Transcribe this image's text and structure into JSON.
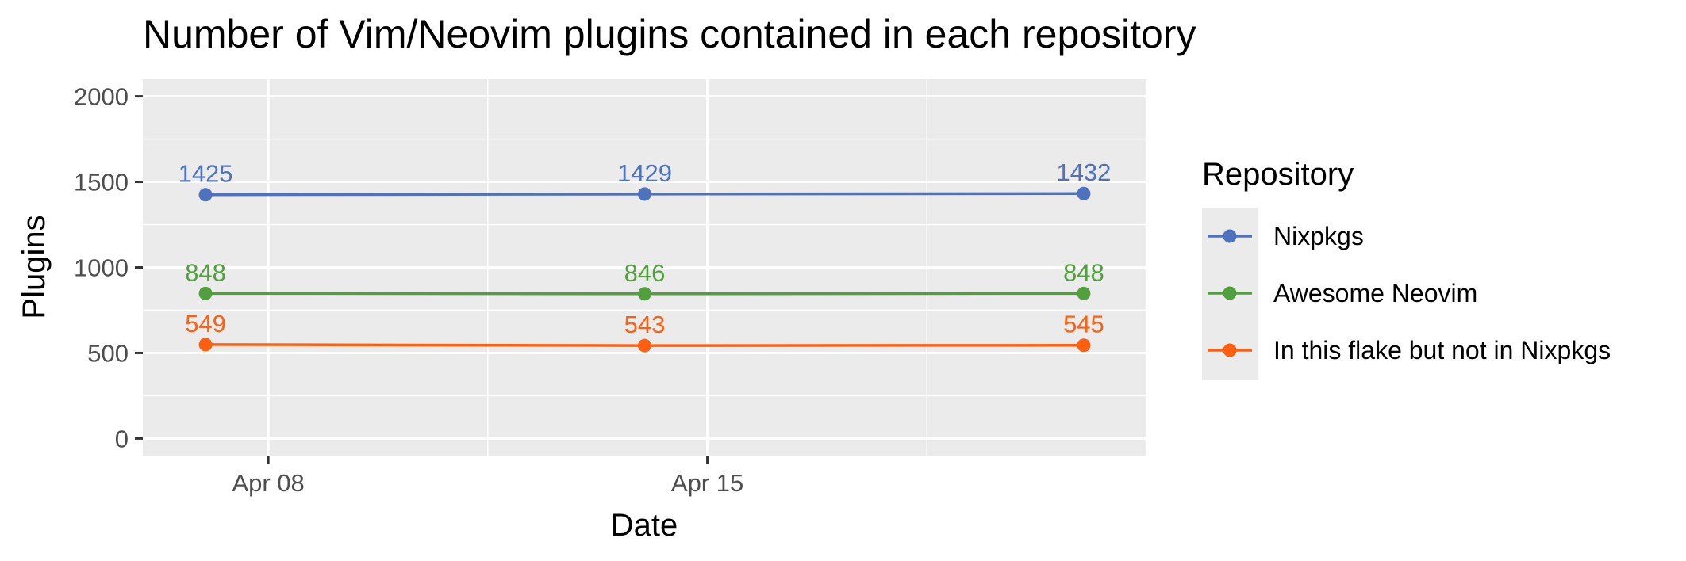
{
  "chart_data": {
    "type": "line",
    "title": "Number of Vim/Neovim plugins contained in each repository",
    "xlabel": "Date",
    "ylabel": "Plugins",
    "x": [
      "2024-04-07",
      "2024-04-14",
      "2024-04-21"
    ],
    "x_ticks": [
      {
        "date": "2024-04-08",
        "label": "Apr 08"
      },
      {
        "date": "2024-04-15",
        "label": "Apr 15"
      }
    ],
    "xlim": [
      "2024-04-06",
      "2024-04-22"
    ],
    "ylim": [
      -100,
      2100
    ],
    "y_ticks": [
      0,
      500,
      1000,
      1500,
      2000
    ],
    "grid": true,
    "legend": {
      "title": "Repository",
      "position": "right"
    },
    "series": [
      {
        "name": "Nixpkgs",
        "color": "#4e72be",
        "values": [
          1425,
          1429,
          1432
        ]
      },
      {
        "name": "Awesome Neovim",
        "color": "#52a03d",
        "values": [
          848,
          846,
          848
        ]
      },
      {
        "name": "In this flake but not in Nixpkgs",
        "color": "#ff6010",
        "values": [
          549,
          543,
          545
        ]
      }
    ]
  }
}
